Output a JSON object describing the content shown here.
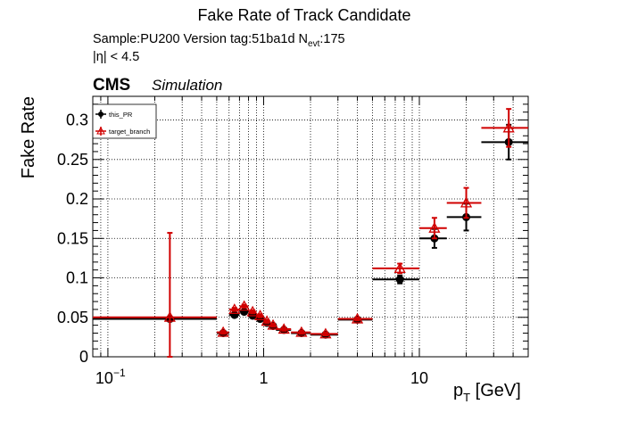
{
  "chart_data": {
    "type": "scatter",
    "title": "Fake Rate of Track Candidate",
    "info": {
      "sample_prefix": "Sample:PU200   Version tag:51ba1d  N",
      "sample_subscript": "evt",
      "sample_suffix": ":175",
      "eta_cut": "|η| < 4.5"
    },
    "cms_label": "CMS",
    "simulation_label": "Simulation",
    "xlabel": {
      "main": "p",
      "sub": "T",
      "unit": " [GeV]"
    },
    "ylabel": "Fake Rate",
    "xscale": "log",
    "xlim": [
      0.08,
      50
    ],
    "ylim": [
      0,
      0.33
    ],
    "grid": true,
    "legend_position": "top-left",
    "x_ticks": [
      {
        "value": 0.1,
        "base": "10",
        "exp": "−1"
      },
      {
        "value": 1,
        "base": "1",
        "exp": ""
      },
      {
        "value": 10,
        "base": "10",
        "exp": ""
      }
    ],
    "y_ticks": [
      {
        "value": 0,
        "label": "0"
      },
      {
        "value": 0.05,
        "label": "0.05"
      },
      {
        "value": 0.1,
        "label": "0.1"
      },
      {
        "value": 0.15,
        "label": "0.15"
      },
      {
        "value": 0.2,
        "label": "0.2"
      },
      {
        "value": 0.25,
        "label": "0.25"
      },
      {
        "value": 0.3,
        "label": "0.3"
      }
    ],
    "series": [
      {
        "name": "this_PR",
        "color": "#000000",
        "marker": "filled-circle",
        "points": [
          {
            "x": 0.25,
            "xlo": 0.0,
            "xhi": 0.5,
            "y": 0.048,
            "ylo": 0.045,
            "yhi": 0.051
          },
          {
            "x": 0.55,
            "xlo": 0.5,
            "xhi": 0.6,
            "y": 0.03,
            "ylo": 0.029,
            "yhi": 0.031
          },
          {
            "x": 0.65,
            "xlo": 0.6,
            "xhi": 0.7,
            "y": 0.053,
            "ylo": 0.051,
            "yhi": 0.055
          },
          {
            "x": 0.75,
            "xlo": 0.7,
            "xhi": 0.8,
            "y": 0.057,
            "ylo": 0.055,
            "yhi": 0.059
          },
          {
            "x": 0.85,
            "xlo": 0.8,
            "xhi": 0.9,
            "y": 0.052,
            "ylo": 0.05,
            "yhi": 0.054
          },
          {
            "x": 0.95,
            "xlo": 0.9,
            "xhi": 1.0,
            "y": 0.048,
            "ylo": 0.046,
            "yhi": 0.05
          },
          {
            "x": 1.05,
            "xlo": 1.0,
            "xhi": 1.1,
            "y": 0.043,
            "ylo": 0.041,
            "yhi": 0.045
          },
          {
            "x": 1.15,
            "xlo": 1.1,
            "xhi": 1.2,
            "y": 0.039,
            "ylo": 0.037,
            "yhi": 0.041
          },
          {
            "x": 1.35,
            "xlo": 1.2,
            "xhi": 1.5,
            "y": 0.034,
            "ylo": 0.032,
            "yhi": 0.036
          },
          {
            "x": 1.75,
            "xlo": 1.5,
            "xhi": 2.0,
            "y": 0.03,
            "ylo": 0.028,
            "yhi": 0.032
          },
          {
            "x": 2.5,
            "xlo": 2.0,
            "xhi": 3.0,
            "y": 0.028,
            "ylo": 0.026,
            "yhi": 0.03
          },
          {
            "x": 4.0,
            "xlo": 3.0,
            "xhi": 5.0,
            "y": 0.047,
            "ylo": 0.045,
            "yhi": 0.049
          },
          {
            "x": 7.5,
            "xlo": 5.0,
            "xhi": 10.0,
            "y": 0.098,
            "ylo": 0.093,
            "yhi": 0.103
          },
          {
            "x": 12.5,
            "xlo": 10.0,
            "xhi": 15.0,
            "y": 0.15,
            "ylo": 0.138,
            "yhi": 0.162
          },
          {
            "x": 20.0,
            "xlo": 15.0,
            "xhi": 25.0,
            "y": 0.177,
            "ylo": 0.16,
            "yhi": 0.194
          },
          {
            "x": 37.5,
            "xlo": 25.0,
            "xhi": 50.0,
            "y": 0.272,
            "ylo": 0.25,
            "yhi": 0.294
          }
        ]
      },
      {
        "name": "target_branch",
        "color": "#d00000",
        "marker": "open-triangle",
        "points": [
          {
            "x": 0.25,
            "xlo": 0.0,
            "xhi": 0.5,
            "y": 0.05,
            "ylo": 0.0,
            "yhi": 0.157
          },
          {
            "x": 0.55,
            "xlo": 0.5,
            "xhi": 0.6,
            "y": 0.031,
            "ylo": 0.029,
            "yhi": 0.033
          },
          {
            "x": 0.65,
            "xlo": 0.6,
            "xhi": 0.7,
            "y": 0.06,
            "ylo": 0.058,
            "yhi": 0.062
          },
          {
            "x": 0.75,
            "xlo": 0.7,
            "xhi": 0.8,
            "y": 0.064,
            "ylo": 0.062,
            "yhi": 0.066
          },
          {
            "x": 0.85,
            "xlo": 0.8,
            "xhi": 0.9,
            "y": 0.057,
            "ylo": 0.055,
            "yhi": 0.059
          },
          {
            "x": 0.95,
            "xlo": 0.9,
            "xhi": 1.0,
            "y": 0.052,
            "ylo": 0.05,
            "yhi": 0.054
          },
          {
            "x": 1.05,
            "xlo": 1.0,
            "xhi": 1.1,
            "y": 0.045,
            "ylo": 0.043,
            "yhi": 0.047
          },
          {
            "x": 1.15,
            "xlo": 1.1,
            "xhi": 1.2,
            "y": 0.04,
            "ylo": 0.038,
            "yhi": 0.042
          },
          {
            "x": 1.35,
            "xlo": 1.2,
            "xhi": 1.5,
            "y": 0.035,
            "ylo": 0.033,
            "yhi": 0.037
          },
          {
            "x": 1.75,
            "xlo": 1.5,
            "xhi": 2.0,
            "y": 0.031,
            "ylo": 0.029,
            "yhi": 0.033
          },
          {
            "x": 2.5,
            "xlo": 2.0,
            "xhi": 3.0,
            "y": 0.029,
            "ylo": 0.027,
            "yhi": 0.031
          },
          {
            "x": 4.0,
            "xlo": 3.0,
            "xhi": 5.0,
            "y": 0.048,
            "ylo": 0.046,
            "yhi": 0.05
          },
          {
            "x": 7.5,
            "xlo": 5.0,
            "xhi": 10.0,
            "y": 0.112,
            "ylo": 0.106,
            "yhi": 0.118
          },
          {
            "x": 12.5,
            "xlo": 10.0,
            "xhi": 15.0,
            "y": 0.163,
            "ylo": 0.15,
            "yhi": 0.176
          },
          {
            "x": 20.0,
            "xlo": 15.0,
            "xhi": 25.0,
            "y": 0.195,
            "ylo": 0.176,
            "yhi": 0.214
          },
          {
            "x": 37.5,
            "xlo": 25.0,
            "xhi": 50.0,
            "y": 0.29,
            "ylo": 0.266,
            "yhi": 0.314
          }
        ]
      }
    ]
  }
}
